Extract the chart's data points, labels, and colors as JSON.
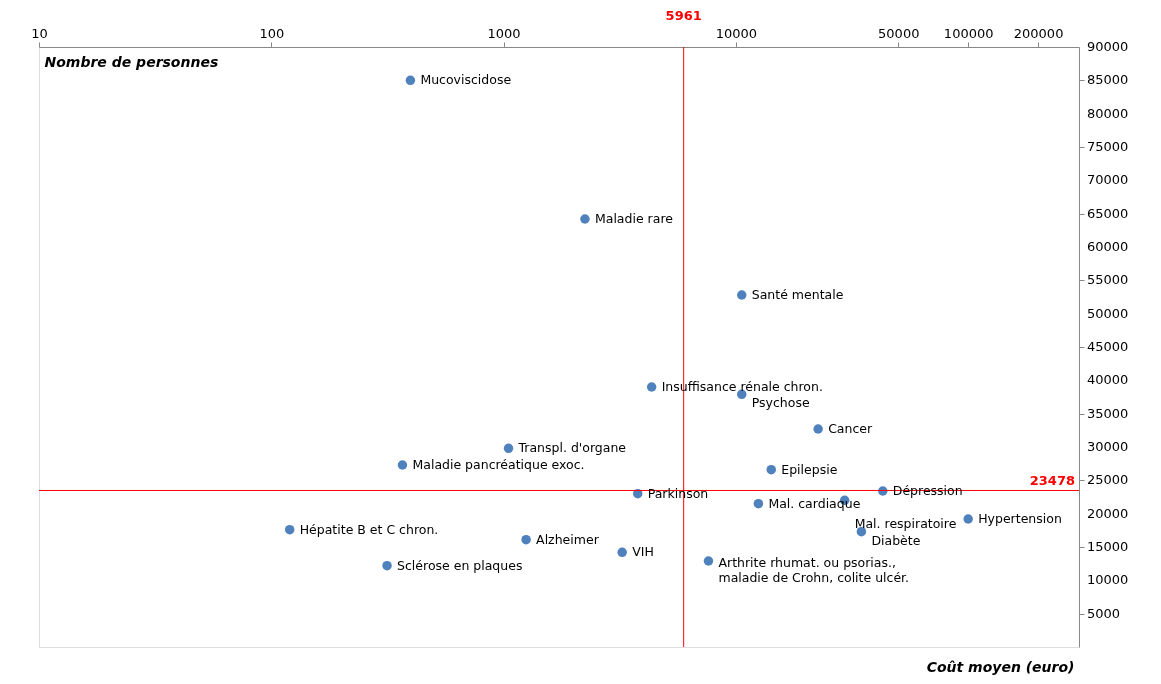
{
  "chart_data": {
    "type": "scatter",
    "xlabel": "Coût moyen (euro)",
    "ylabel": "Nombre de personnes",
    "log": "x",
    "xlim": [
      10,
      300000
    ],
    "xticks": [
      10,
      100,
      1000,
      10000,
      50000,
      100000,
      200000
    ],
    "ylim": [
      0,
      90000
    ],
    "yticks": [
      5000,
      10000,
      15000,
      20000,
      25000,
      30000,
      35000,
      40000,
      45000,
      50000,
      55000,
      60000,
      65000,
      70000,
      75000,
      80000,
      85000,
      90000
    ],
    "grid": false,
    "marker": "circle",
    "series": [
      {
        "color": "#4f81bd",
        "x": [
          397,
          2240,
          10600,
          4340,
          10600,
          22600,
          1050,
          367,
          14200,
          42900,
          3780,
          12500,
          29400,
          100000,
          120,
          34700,
          1250,
          3240,
          7620,
          315
        ],
        "values": [
          85000,
          64200,
          52800,
          39000,
          37900,
          32700,
          29800,
          27300,
          26600,
          23400,
          23000,
          21500,
          22000,
          19200,
          17600,
          17300,
          16100,
          14200,
          12900,
          12200
        ]
      }
    ],
    "ref_lines": [
      {
        "axis": "x",
        "value": 5961,
        "label": "5961",
        "color": "#ff0000"
      },
      {
        "axis": "y",
        "value": 23478,
        "label": "23478",
        "color": "#ff0000"
      }
    ],
    "annotations": [
      {
        "text": "Mucoviscidose",
        "x": 397,
        "y": 85000
      },
      {
        "text": "Maladie rare",
        "x": 2240,
        "y": 64200
      },
      {
        "text": "Santé mentale",
        "x": 10600,
        "y": 52800
      },
      {
        "text": "Insuffisance rénale chron.",
        "x": 4340,
        "y": 39000
      },
      {
        "text": "Psychose",
        "x": 10600,
        "y": 37900
      },
      {
        "text": "Cancer",
        "x": 22600,
        "y": 32700
      },
      {
        "text": "Transpl. d'organe",
        "x": 1050,
        "y": 29800
      },
      {
        "text": "Maladie pancréatique exoc.",
        "x": 367,
        "y": 27300
      },
      {
        "text": "Epilepsie",
        "x": 14200,
        "y": 26600
      },
      {
        "text": "Dépression",
        "x": 42900,
        "y": 23400
      },
      {
        "text": "Parkinson",
        "x": 3780,
        "y": 23000
      },
      {
        "text": "Mal. cardiaque",
        "x": 12500,
        "y": 21500
      },
      {
        "text": "Mal. respiratoire",
        "x": 29400,
        "y": 22000
      },
      {
        "text": "Hypertension",
        "x": 100000,
        "y": 19200
      },
      {
        "text": "Hépatite B et C chron.",
        "x": 120,
        "y": 17600
      },
      {
        "text": "Diabète",
        "x": 34700,
        "y": 17300
      },
      {
        "text": "Alzheimer",
        "x": 1250,
        "y": 16100
      },
      {
        "text": "VIH",
        "x": 3240,
        "y": 14200
      },
      {
        "text": "Arthrite rhumat. ou psorias.,\nmaladie de Crohn, colite ulcér.",
        "x": 7620,
        "y": 12900
      },
      {
        "text": "Sclérose en plaques",
        "x": 315,
        "y": 12200
      }
    ]
  }
}
